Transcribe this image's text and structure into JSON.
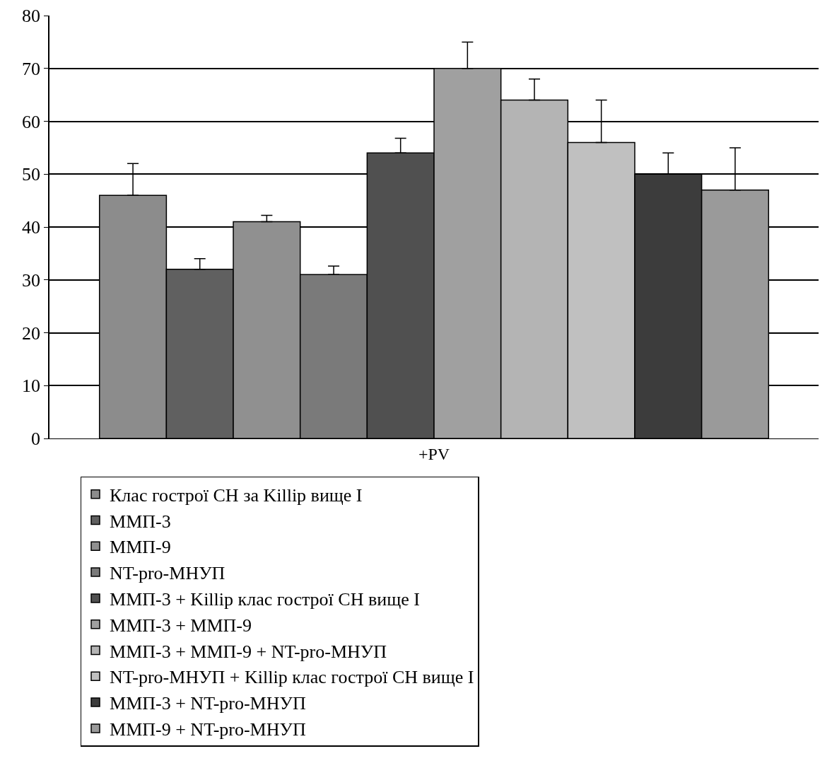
{
  "chart_data": {
    "type": "bar",
    "categories": [
      "+PV"
    ],
    "series": [
      {
        "name": "Клас гострої СН за Killip вище I",
        "color": "#8c8c8c",
        "values": [
          46
        ],
        "errors": [
          [
            46,
            52
          ]
        ]
      },
      {
        "name": "ММП-3",
        "color": "#606060",
        "values": [
          32
        ],
        "errors": [
          [
            32,
            34
          ]
        ]
      },
      {
        "name": "ММП-9",
        "color": "#909090",
        "values": [
          41
        ],
        "errors": [
          [
            41,
            42.2
          ]
        ]
      },
      {
        "name": "NT-pro-МНУП",
        "color": "#7a7a7a",
        "values": [
          31
        ],
        "errors": [
          [
            31,
            32.6
          ]
        ]
      },
      {
        "name": "ММП-3 + Killip клас гострої СН вище I",
        "color": "#505050",
        "values": [
          54
        ],
        "errors": [
          [
            54,
            56.8
          ]
        ]
      },
      {
        "name": "ММП-3 + ММП-9",
        "color": "#a0a0a0",
        "values": [
          70
        ],
        "errors": [
          [
            70,
            75
          ]
        ]
      },
      {
        "name": "ММП-3 + ММП-9 + NT-pro-МНУП",
        "color": "#b4b4b4",
        "values": [
          64
        ],
        "errors": [
          [
            64,
            68
          ]
        ]
      },
      {
        "name": "NT-pro-МНУП + Killip клас гострої СН вище I",
        "color": "#c0c0c0",
        "values": [
          56
        ],
        "errors": [
          [
            56,
            64
          ]
        ]
      },
      {
        "name": "ММП-3 + NT-pro-МНУП",
        "color": "#3c3c3c",
        "values": [
          50
        ],
        "errors": [
          [
            50,
            54
          ]
        ]
      },
      {
        "name": "ММП-9 + NT-pro-МНУП",
        "color": "#9a9a9a",
        "values": [
          47
        ],
        "errors": [
          [
            47,
            55
          ]
        ]
      }
    ],
    "ylim": [
      0,
      80
    ],
    "yticks": [
      0,
      10,
      20,
      30,
      40,
      50,
      60,
      70,
      80
    ],
    "grid": "y",
    "legend": "bottom"
  }
}
